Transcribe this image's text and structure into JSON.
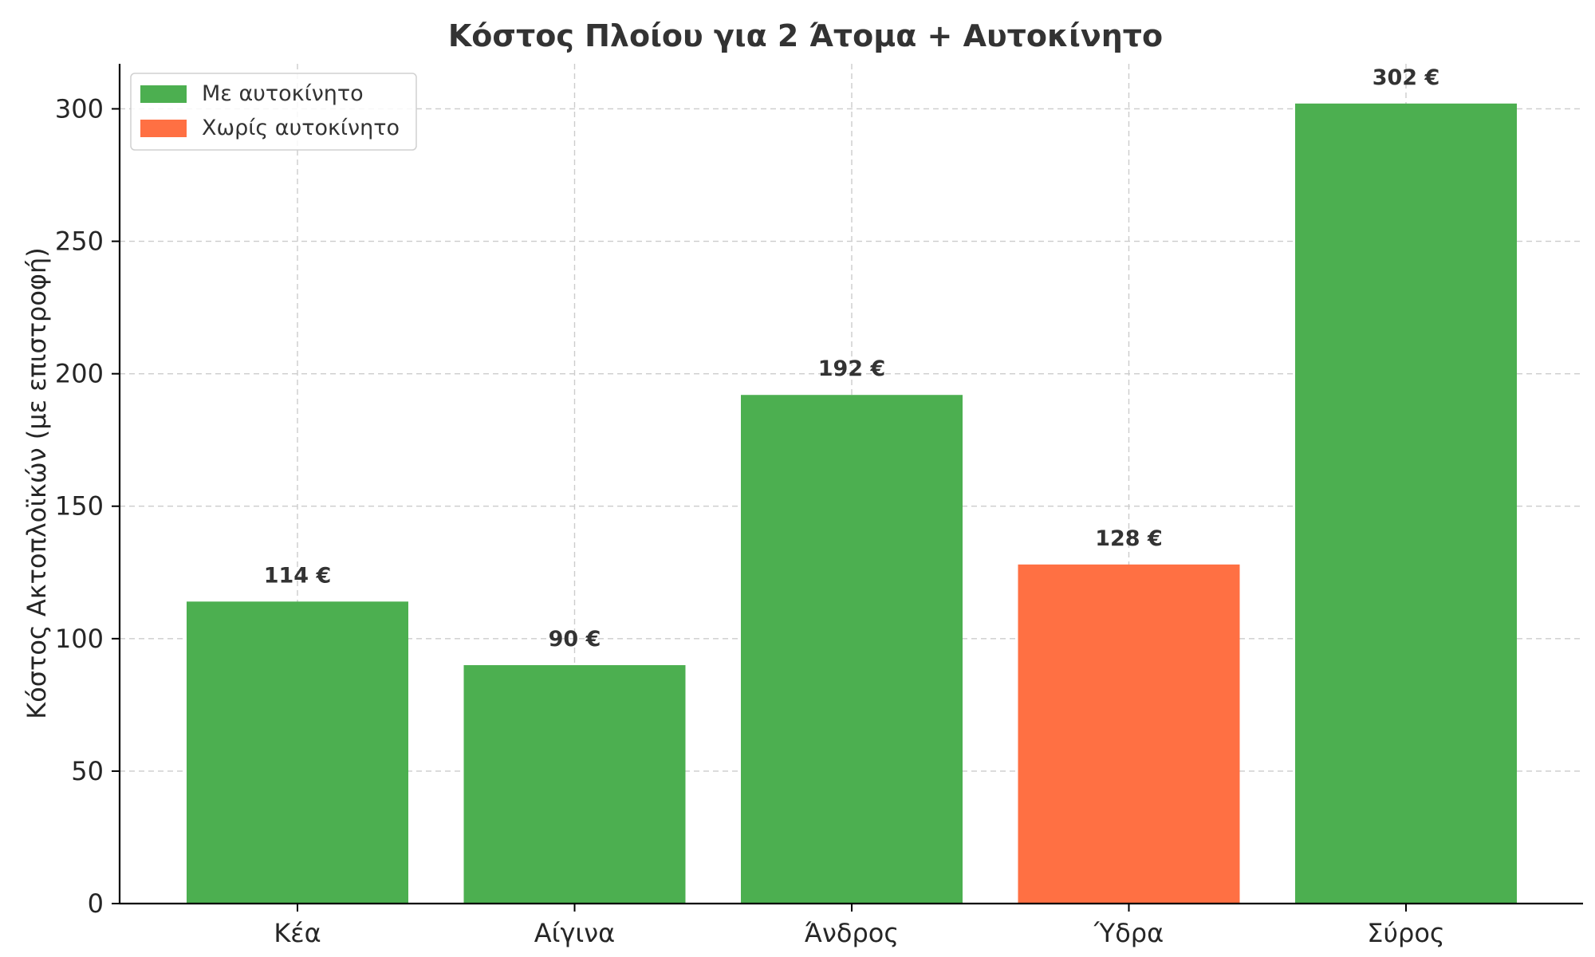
{
  "chart_data": {
    "type": "bar",
    "title": "Κόστος Πλοίου για 2 Άτομα + Αυτοκίνητο",
    "xlabel": "",
    "ylabel": "Κόστος Ακτοπλοϊκών (με επιστροφή)",
    "categories": [
      "Κέα",
      "Αίγινα",
      "Άνδρος",
      "Ύδρα",
      "Σύρος"
    ],
    "values": [
      114,
      90,
      192,
      128,
      302
    ],
    "value_labels": [
      "114 €",
      "90 €",
      "192 €",
      "128 €",
      "302 €"
    ],
    "bar_series": [
      "Με αυτοκίνητο",
      "Με αυτοκίνητο",
      "Με αυτοκίνητο",
      "Χωρίς αυτοκίνητο",
      "Με αυτοκίνητο"
    ],
    "legend": [
      {
        "label": "Με αυτοκίνητο",
        "color": "#4caf50"
      },
      {
        "label": "Χωρίς αυτοκίνητο",
        "color": "#ff7043"
      }
    ],
    "legend_position": "top-left",
    "yticks": [
      0,
      50,
      100,
      150,
      200,
      250,
      300
    ],
    "ylim": [
      0,
      317
    ],
    "grid": true
  }
}
